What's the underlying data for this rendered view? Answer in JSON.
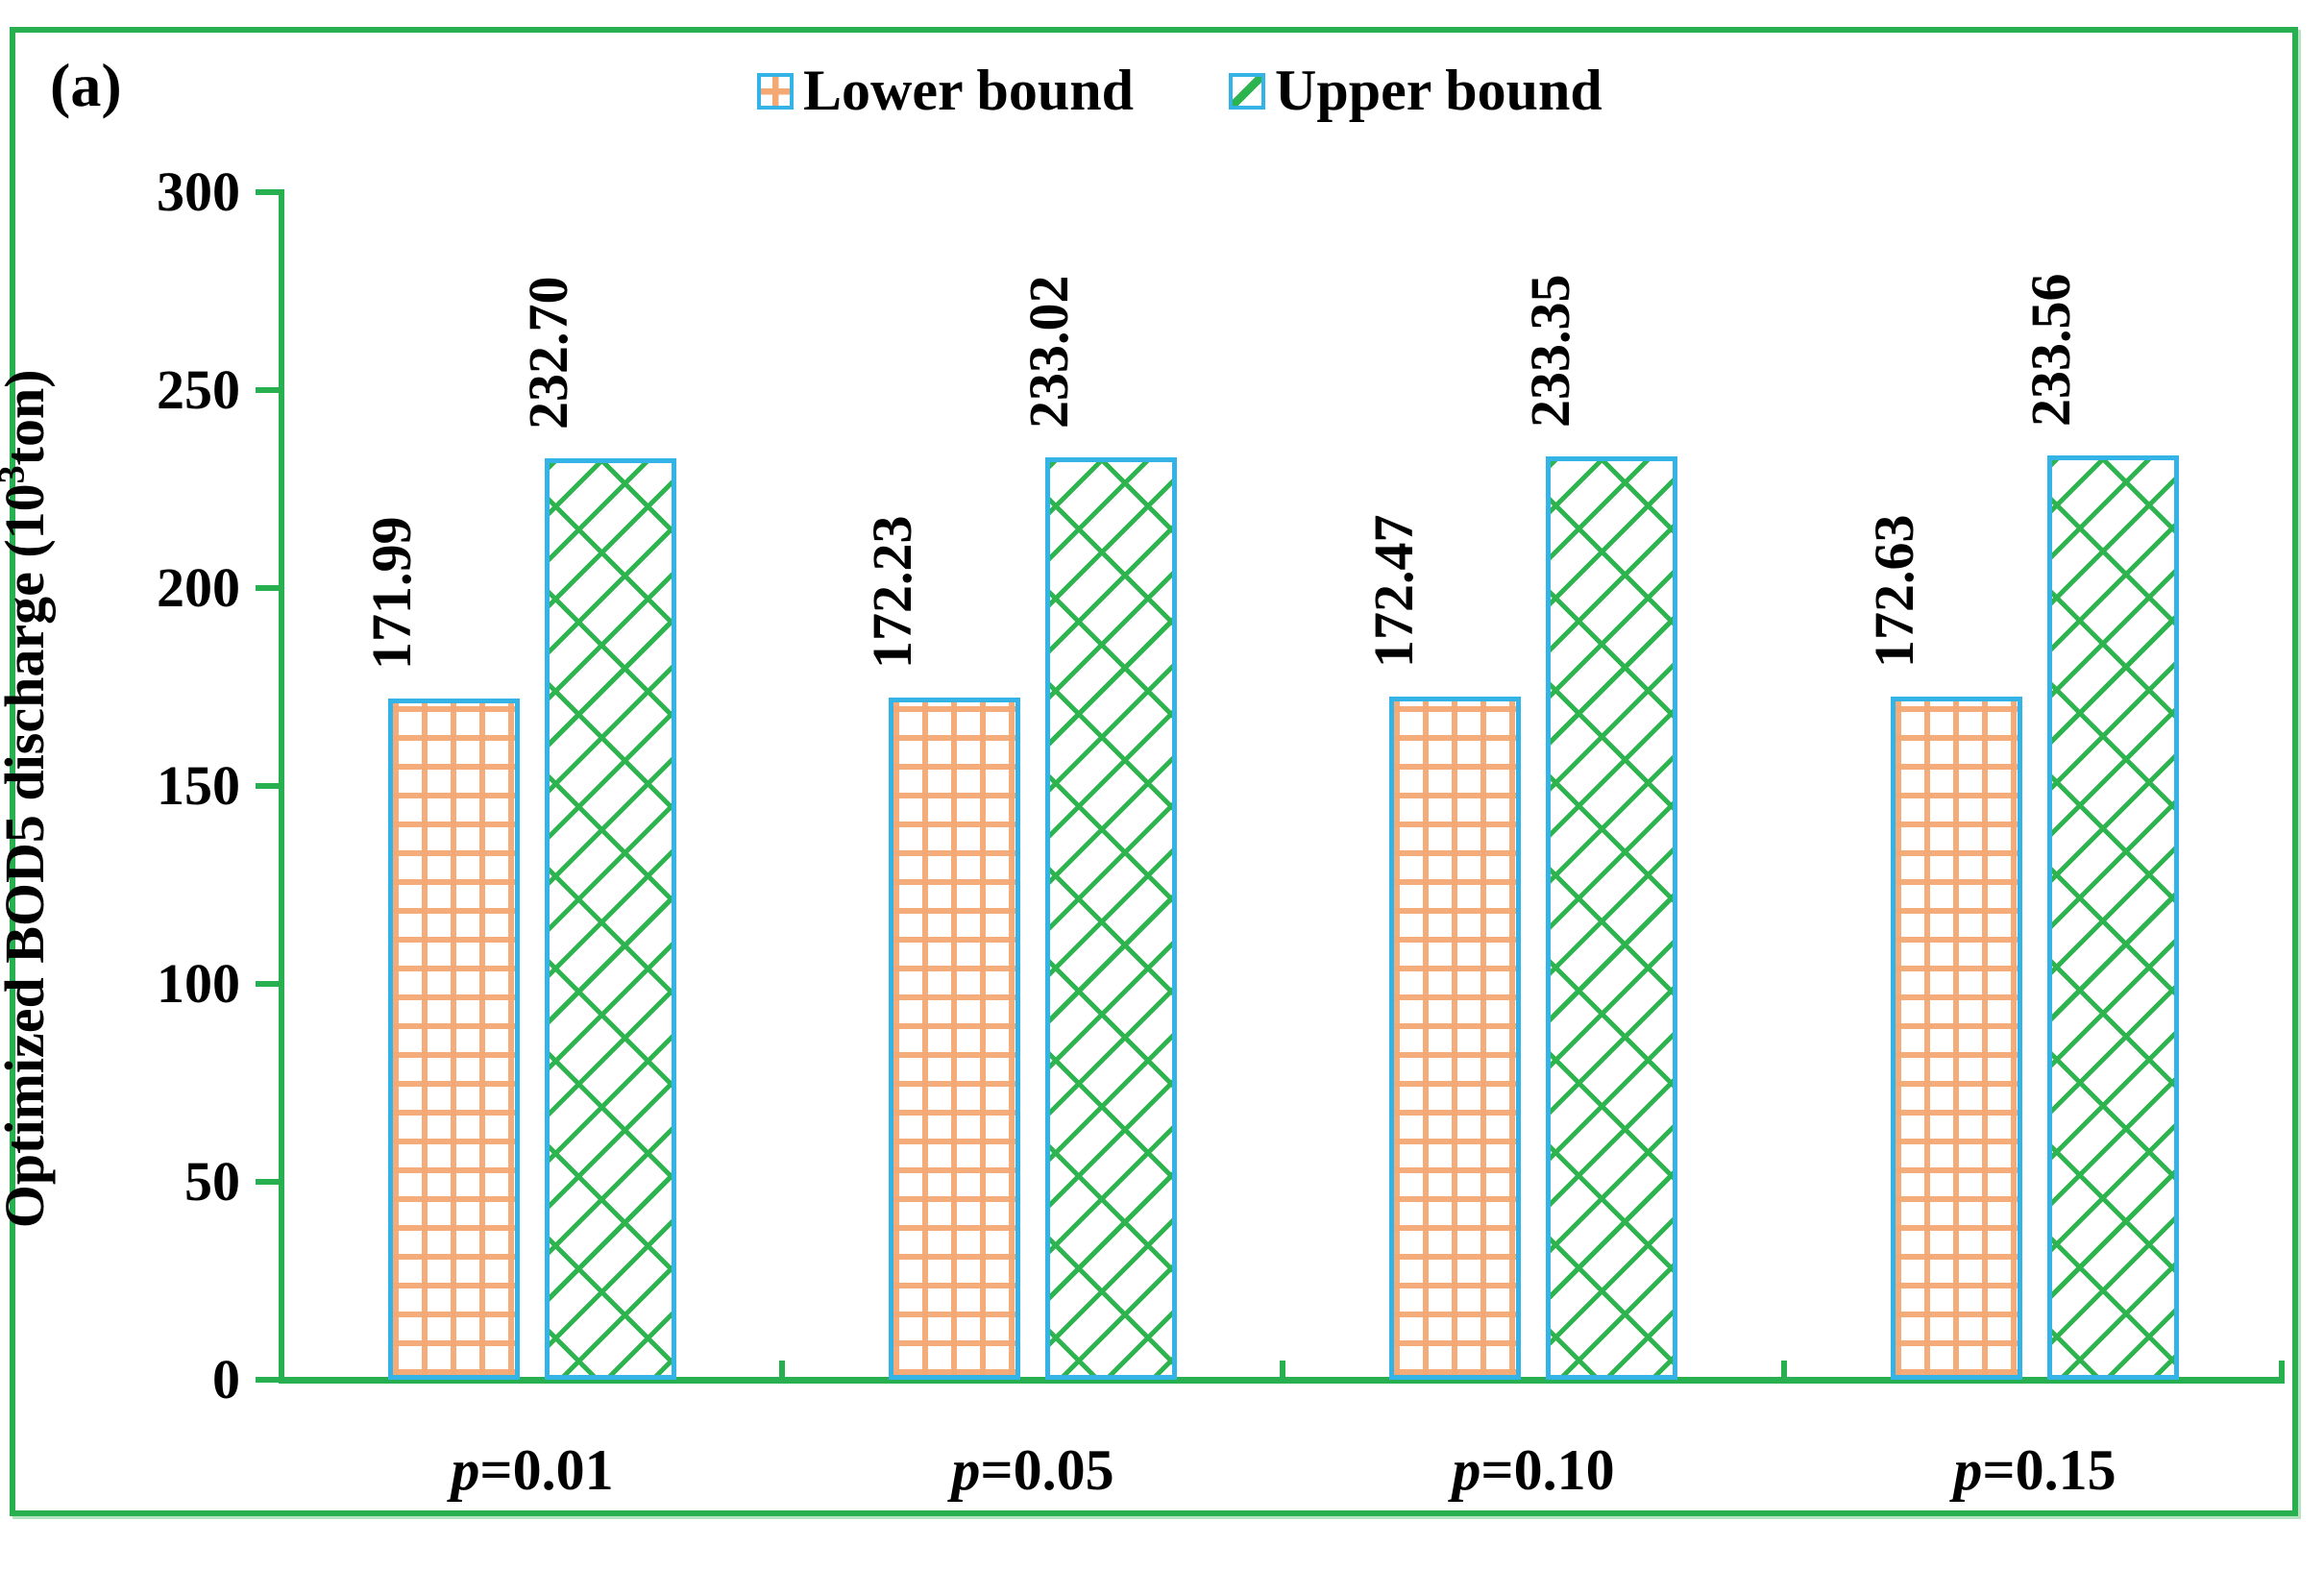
{
  "panel_label": "(a)",
  "legend": {
    "items": [
      {
        "label": "Lower bound",
        "swatch": "orange-grid-swatch"
      },
      {
        "label": "Upper bound",
        "swatch": "green-diagonal-swatch"
      }
    ]
  },
  "y_axis": {
    "title_prefix": "Optimized  BOD5 discharge (10",
    "title_sup": "3",
    "title_suffix": "ton)"
  },
  "chart_data": {
    "type": "bar",
    "categories": [
      "p=0.01",
      "p=0.05",
      "p=0.10",
      "p=0.15"
    ],
    "series": [
      {
        "name": "Lower bound",
        "values": [
          171.99,
          172.23,
          172.47,
          172.63
        ]
      },
      {
        "name": "Upper bound",
        "values": [
          232.7,
          233.02,
          233.35,
          233.56
        ]
      }
    ],
    "title": "",
    "xlabel": "",
    "ylabel": "Optimized BOD5 discharge (10³ton)",
    "ylim": [
      0,
      300
    ],
    "ytick_step": 50,
    "y_tick_labels": [
      "0",
      "50",
      "100",
      "150",
      "200",
      "250",
      "300"
    ],
    "grid": false,
    "legend_position": "top-center",
    "value_labels_rotated": true
  },
  "colors": {
    "axis_green": "#28B050",
    "bar_border_cyan": "#33B3E6",
    "lower_pattern_orange": "#F4A873",
    "upper_pattern_green": "#2DB44F",
    "text": "#000000"
  }
}
